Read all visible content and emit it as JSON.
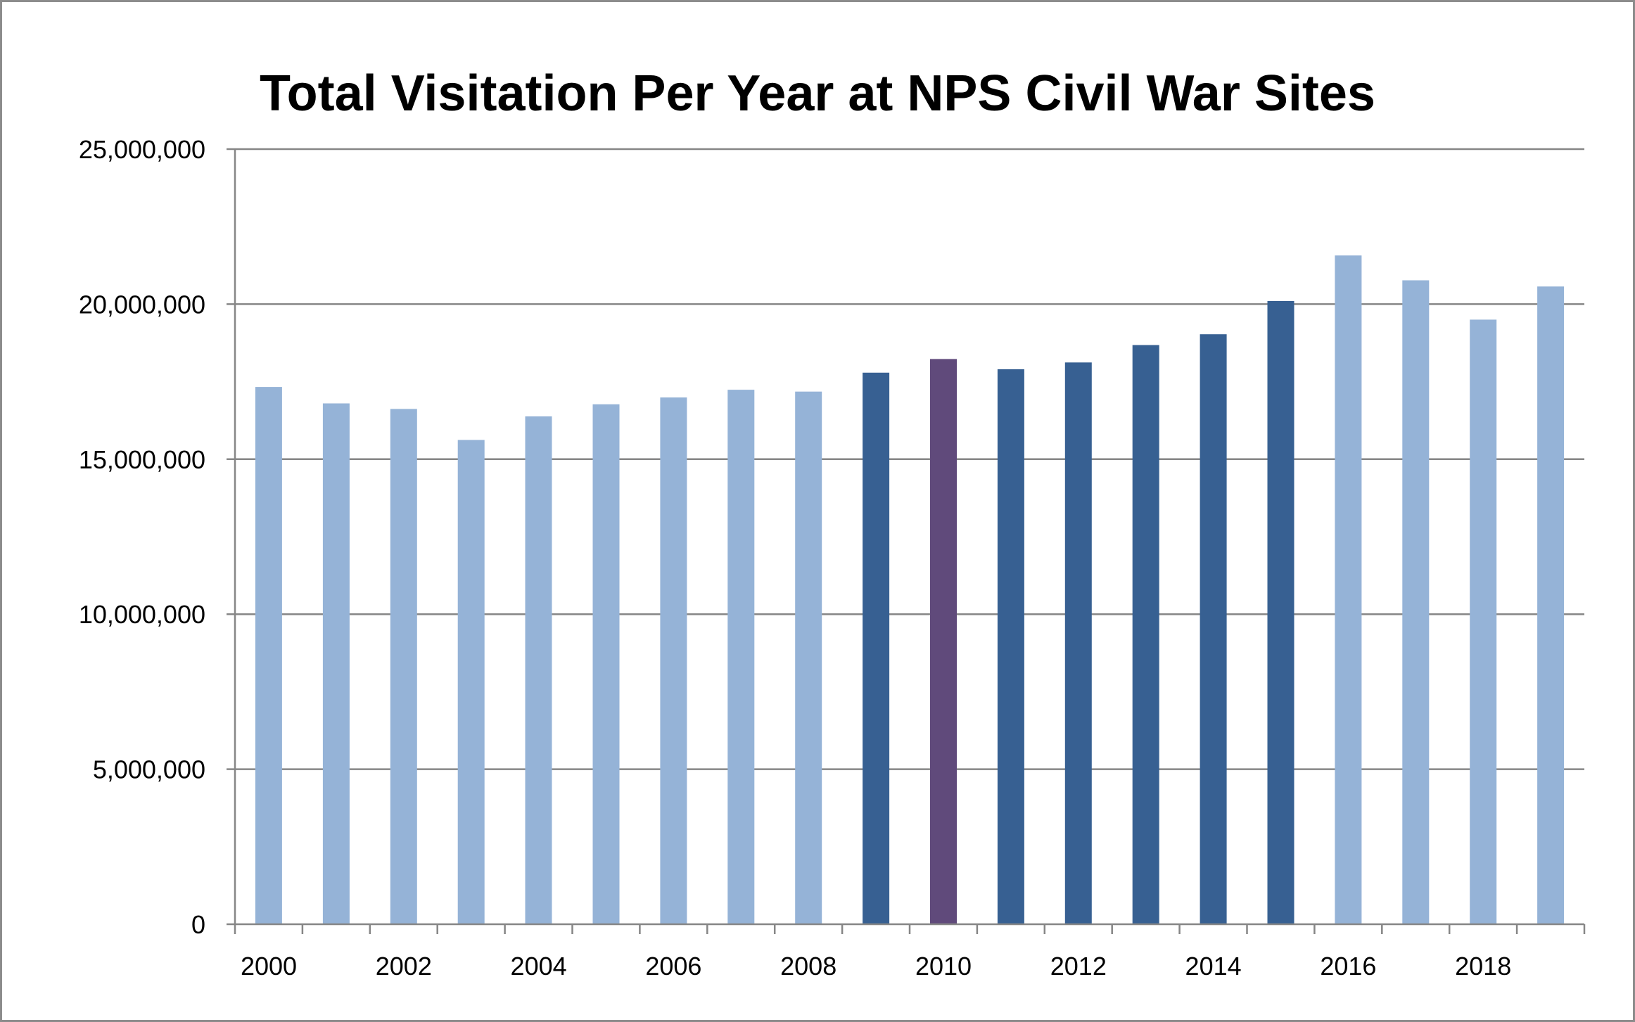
{
  "chart_data": {
    "type": "bar",
    "title": "Total Visitation Per Year at NPS Civil War Sites",
    "xlabel": "",
    "ylabel": "",
    "ylim": [
      0,
      25000000
    ],
    "yticks": [
      0,
      5000000,
      10000000,
      15000000,
      20000000,
      25000000
    ],
    "ytick_labels": [
      "0",
      "5,000,000",
      "10,000,000",
      "15,000,000",
      "20,000,000",
      "25,000,000"
    ],
    "grid": true,
    "legend": "none",
    "categories": [
      "2000",
      "2001",
      "2002",
      "2003",
      "2004",
      "2005",
      "2006",
      "2007",
      "2008",
      "2009",
      "2010",
      "2011",
      "2012",
      "2013",
      "2014",
      "2015",
      "2016",
      "2017",
      "2018",
      "2019"
    ],
    "xtick_labels": [
      "2000",
      "",
      "2002",
      "",
      "2004",
      "",
      "2006",
      "",
      "2008",
      "",
      "2010",
      "",
      "2012",
      "",
      "2014",
      "",
      "2016",
      "",
      "2018",
      ""
    ],
    "values": [
      17330000,
      16800000,
      16620000,
      15620000,
      16380000,
      16770000,
      16990000,
      17240000,
      17180000,
      17790000,
      18230000,
      17900000,
      18120000,
      18680000,
      19030000,
      20100000,
      21570000,
      20770000,
      19500000,
      20570000
    ],
    "bar_colors": [
      "#95b3d7",
      "#95b3d7",
      "#95b3d7",
      "#95b3d7",
      "#95b3d7",
      "#95b3d7",
      "#95b3d7",
      "#95b3d7",
      "#95b3d7",
      "#376092",
      "#604a7b",
      "#376092",
      "#376092",
      "#376092",
      "#376092",
      "#376092",
      "#95b3d7",
      "#95b3d7",
      "#95b3d7",
      "#95b3d7"
    ],
    "gridline_color": "#868686",
    "axis_color": "#868686"
  }
}
